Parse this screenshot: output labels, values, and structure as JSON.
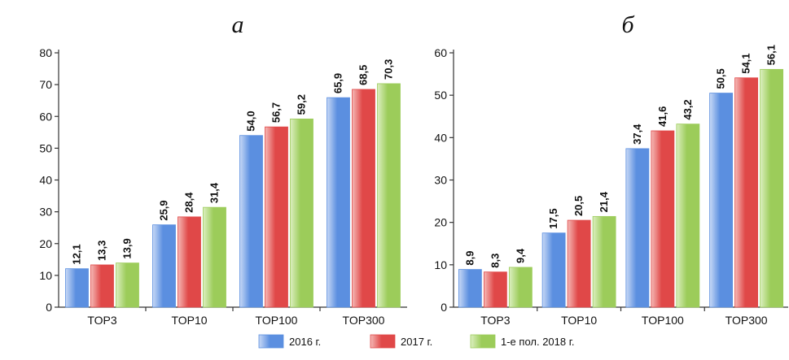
{
  "chart_data": [
    {
      "type": "bar",
      "title": "а",
      "categories": [
        "TOP3",
        "TOP10",
        "TOP100",
        "TOP300"
      ],
      "series": [
        {
          "name": "2016 г.",
          "values": [
            12.1,
            25.9,
            54.0,
            65.9
          ],
          "labels": [
            "12,1",
            "25,9",
            "54,0",
            "65,9"
          ]
        },
        {
          "name": "2017 г.",
          "values": [
            13.3,
            28.4,
            56.7,
            68.5
          ],
          "labels": [
            "13,3",
            "28,4",
            "56,7",
            "68,5"
          ]
        },
        {
          "name": "1-е пол. 2018 г.",
          "values": [
            13.9,
            31.4,
            59.2,
            70.3
          ],
          "labels": [
            "13,9",
            "31,4",
            "59,2",
            "70,3"
          ]
        }
      ],
      "ylim": [
        0,
        80
      ],
      "yticks": [
        0,
        10,
        20,
        30,
        40,
        50,
        60,
        70,
        80
      ],
      "xlabel": "",
      "ylabel": "",
      "grid": false
    },
    {
      "type": "bar",
      "title": "б",
      "categories": [
        "TOP3",
        "TOP10",
        "TOP100",
        "TOP300"
      ],
      "series": [
        {
          "name": "2016 г.",
          "values": [
            8.9,
            17.5,
            37.4,
            50.5
          ],
          "labels": [
            "8,9",
            "17,5",
            "37,4",
            "50,5"
          ]
        },
        {
          "name": "2017 г.",
          "values": [
            8.3,
            20.5,
            41.6,
            54.1
          ],
          "labels": [
            "8,3",
            "20,5",
            "41,6",
            "54,1"
          ]
        },
        {
          "name": "1-е пол. 2018 г.",
          "values": [
            9.4,
            21.4,
            43.2,
            56.1
          ],
          "labels": [
            "9,4",
            "21,4",
            "43,2",
            "56,1"
          ]
        }
      ],
      "ylim": [
        0,
        60
      ],
      "yticks": [
        0,
        10,
        20,
        30,
        40,
        50,
        60
      ],
      "xlabel": "",
      "ylabel": "",
      "grid": false
    }
  ],
  "legend": {
    "placement": "bottom",
    "items": [
      {
        "label": "2016 г.",
        "color": "#5b8fe0"
      },
      {
        "label": "2017 г.",
        "color": "#e04848"
      },
      {
        "label": "1-е пол. 2018 г.",
        "color": "#9ccc5a"
      }
    ]
  },
  "colors": {
    "series": [
      "#5b8fe0",
      "#e04848",
      "#9ccc5a"
    ],
    "series_light": [
      "#c8d9f6",
      "#f5b9b6",
      "#dcefc0"
    ],
    "axis": "#333333"
  }
}
